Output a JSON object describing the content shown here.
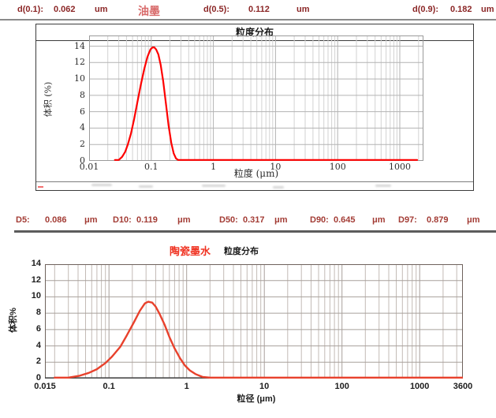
{
  "top_header": {
    "title": "油墨",
    "title_color": "#d86a6a",
    "text_color": "#8b2626",
    "items": [
      {
        "label": "d(0.1):",
        "value": "0.062",
        "unit": "um"
      },
      {
        "label": "d(0.5):",
        "value": "0.112",
        "unit": "um"
      },
      {
        "label": "d(0.9):",
        "value": "0.182",
        "unit": "um"
      }
    ]
  },
  "mid_stats": {
    "text_color": "#a33c35",
    "items": [
      {
        "label": "D5:",
        "value": "0.086",
        "unit": "μm"
      },
      {
        "label": "D10:",
        "value": "0.119",
        "unit": "μm"
      },
      {
        "label": "D50:",
        "value": "0.317",
        "unit": "μm"
      },
      {
        "label": "D90:",
        "value": "0.645",
        "unit": "μm"
      },
      {
        "label": "D97:",
        "value": "0.879",
        "unit": "μm"
      }
    ]
  },
  "bottom_header": {
    "title_red": "陶瓷墨水",
    "title_red_color": "#f03322",
    "title_black": "粒度分布"
  },
  "chart_data": [
    {
      "type": "line",
      "title": "粒度分布",
      "subtitle": "油墨",
      "xlabel": "粒度 (μm)",
      "ylabel": "体积 (%)",
      "xscale": "log",
      "grid": true,
      "legend": "none",
      "xlim": [
        0.01,
        2400
      ],
      "ylim": [
        0,
        14
      ],
      "yticks": [
        0,
        2,
        4,
        6,
        8,
        10,
        12,
        14
      ],
      "xtick_values": [
        0.01,
        0.1,
        1,
        10,
        100,
        1000
      ],
      "xtick_labels": [
        "0.01",
        "0.1",
        "1",
        "10",
        "100",
        "1000"
      ],
      "line_color": "#fe0000",
      "colors": {
        "grid_minor": "#d2d2d2",
        "grid_major": "#b3b3b3",
        "border": "#9a9a9a",
        "axis": "#9a9a9a"
      },
      "series": [
        {
          "name": "油墨",
          "x": [
            0.026,
            0.03,
            0.034,
            0.038,
            0.042,
            0.047,
            0.053,
            0.06,
            0.068,
            0.077,
            0.087,
            0.097,
            0.105,
            0.112,
            0.12,
            0.13,
            0.142,
            0.156,
            0.172,
            0.19,
            0.21,
            0.23,
            0.25,
            0.27,
            0.3,
            0.4,
            1,
            10,
            100,
            1000,
            1900
          ],
          "y": [
            0,
            0.1,
            0.5,
            1.1,
            2.0,
            3.3,
            5.1,
            7.2,
            9.3,
            11.2,
            12.7,
            13.6,
            13.85,
            13.85,
            13.6,
            13.0,
            11.7,
            9.7,
            7.0,
            4.3,
            2.2,
            0.9,
            0.3,
            0.1,
            0,
            0,
            0,
            0,
            0,
            0,
            0
          ]
        }
      ],
      "stats": {
        "d(0.1)": "0.062 um",
        "d(0.5)": "0.112 um",
        "d(0.9)": "0.182 um"
      }
    },
    {
      "type": "line",
      "title": "陶瓷墨水 粒度分布",
      "xlabel": "粒径 (μm)",
      "ylabel": "体积%",
      "xscale": "log",
      "grid": true,
      "legend": "none",
      "xlim": [
        0.015,
        3600
      ],
      "ylim": [
        0,
        14
      ],
      "yticks": [
        0,
        2,
        4,
        6,
        8,
        10,
        12,
        14
      ],
      "xtick_values": [
        0.015,
        0.1,
        1,
        10,
        100,
        1000,
        3600
      ],
      "xtick_labels": [
        "0.015",
        "0.1",
        "1",
        "10",
        "100",
        "1000",
        "3600"
      ],
      "line_color": "#e8412c",
      "colors": {
        "grid_minor": "#c3bbb6",
        "grid_major": "#a8a09b",
        "border": "#6e625c",
        "axis": "#4a4a4a"
      },
      "series": [
        {
          "name": "陶瓷墨水",
          "x": [
            0.02,
            0.03,
            0.042,
            0.055,
            0.07,
            0.09,
            0.11,
            0.14,
            0.17,
            0.21,
            0.25,
            0.29,
            0.32,
            0.36,
            0.4,
            0.45,
            0.52,
            0.6,
            0.7,
            0.82,
            0.95,
            1.1,
            1.3,
            1.6,
            2.0,
            2.6,
            3.5,
            10,
            100,
            1000,
            3600
          ],
          "y": [
            0,
            0.1,
            0.35,
            0.7,
            1.15,
            1.9,
            2.7,
            3.9,
            5.3,
            6.9,
            8.3,
            9.2,
            9.4,
            9.3,
            8.8,
            7.9,
            6.6,
            5.1,
            3.7,
            2.5,
            1.6,
            1.0,
            0.55,
            0.2,
            0.07,
            0,
            0,
            0,
            0,
            0,
            0
          ]
        }
      ],
      "stats": {
        "D5": "0.086 μm",
        "D10": "0.119 μm",
        "D50": "0.317 μm",
        "D90": "0.645 μm",
        "D97": "0.879 μm"
      }
    }
  ]
}
